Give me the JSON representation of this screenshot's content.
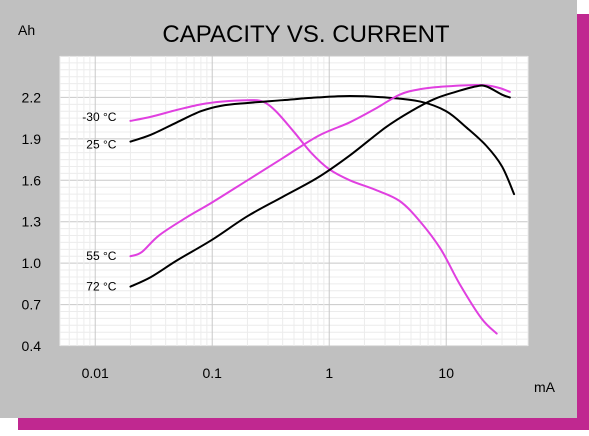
{
  "chart_data": {
    "type": "line",
    "title": "CAPACITY VS. CURRENT",
    "xlabel": "mA",
    "ylabel": "Ah",
    "x_scale": "log",
    "xlim": [
      0.005,
      50
    ],
    "ylim": [
      0.4,
      2.5
    ],
    "x_ticks": [
      0.01,
      0.1,
      1,
      10
    ],
    "x_tick_labels": [
      "0.01",
      "0.1",
      "1",
      "10"
    ],
    "y_ticks": [
      0.4,
      0.7,
      1.0,
      1.3,
      1.6,
      1.9,
      2.2
    ],
    "y_tick_labels": [
      "0.4",
      "0.7",
      "1.0",
      "1.3",
      "1.6",
      "1.9",
      "2.2"
    ],
    "grid": true,
    "colors": {
      "pink": "#e040e0",
      "black": "#000000",
      "frame": "#c0c0c0",
      "shadow": "#c02890"
    },
    "series": [
      {
        "name": "-30 °C",
        "color": "#e040e0",
        "points": [
          [
            0.02,
            2.03
          ],
          [
            0.03,
            2.06
          ],
          [
            0.05,
            2.11
          ],
          [
            0.08,
            2.15
          ],
          [
            0.12,
            2.17
          ],
          [
            0.2,
            2.18
          ],
          [
            0.27,
            2.17
          ],
          [
            0.35,
            2.1
          ],
          [
            0.5,
            1.95
          ],
          [
            0.7,
            1.8
          ],
          [
            1.0,
            1.68
          ],
          [
            1.5,
            1.6
          ],
          [
            2.5,
            1.53
          ],
          [
            4.0,
            1.45
          ],
          [
            6.0,
            1.3
          ],
          [
            9.0,
            1.1
          ],
          [
            13.0,
            0.85
          ],
          [
            20.0,
            0.6
          ],
          [
            27.0,
            0.49
          ]
        ]
      },
      {
        "name": "25 °C",
        "color": "#000000",
        "points": [
          [
            0.02,
            1.88
          ],
          [
            0.03,
            1.93
          ],
          [
            0.05,
            2.02
          ],
          [
            0.08,
            2.1
          ],
          [
            0.12,
            2.14
          ],
          [
            0.2,
            2.16
          ],
          [
            0.4,
            2.18
          ],
          [
            0.8,
            2.2
          ],
          [
            1.5,
            2.21
          ],
          [
            3.0,
            2.2
          ],
          [
            6.0,
            2.17
          ],
          [
            10.0,
            2.1
          ],
          [
            15.0,
            1.98
          ],
          [
            22.0,
            1.85
          ],
          [
            30.0,
            1.7
          ],
          [
            38.0,
            1.5
          ]
        ]
      },
      {
        "name": "55 °C",
        "color": "#e040e0",
        "points": [
          [
            0.02,
            1.05
          ],
          [
            0.025,
            1.08
          ],
          [
            0.035,
            1.2
          ],
          [
            0.06,
            1.33
          ],
          [
            0.1,
            1.44
          ],
          [
            0.2,
            1.6
          ],
          [
            0.4,
            1.76
          ],
          [
            0.8,
            1.92
          ],
          [
            1.5,
            2.02
          ],
          [
            2.5,
            2.12
          ],
          [
            4.0,
            2.22
          ],
          [
            6.0,
            2.26
          ],
          [
            10.0,
            2.28
          ],
          [
            20.0,
            2.29
          ],
          [
            28.0,
            2.27
          ],
          [
            35.0,
            2.24
          ]
        ]
      },
      {
        "name": "72 °C",
        "color": "#000000",
        "points": [
          [
            0.02,
            0.83
          ],
          [
            0.03,
            0.9
          ],
          [
            0.05,
            1.02
          ],
          [
            0.1,
            1.17
          ],
          [
            0.2,
            1.34
          ],
          [
            0.4,
            1.48
          ],
          [
            0.8,
            1.62
          ],
          [
            1.5,
            1.78
          ],
          [
            3.0,
            1.98
          ],
          [
            5.0,
            2.1
          ],
          [
            8.0,
            2.19
          ],
          [
            12.0,
            2.24
          ],
          [
            18.0,
            2.28
          ],
          [
            22.0,
            2.28
          ],
          [
            30.0,
            2.22
          ],
          [
            35.0,
            2.2
          ]
        ]
      }
    ]
  }
}
